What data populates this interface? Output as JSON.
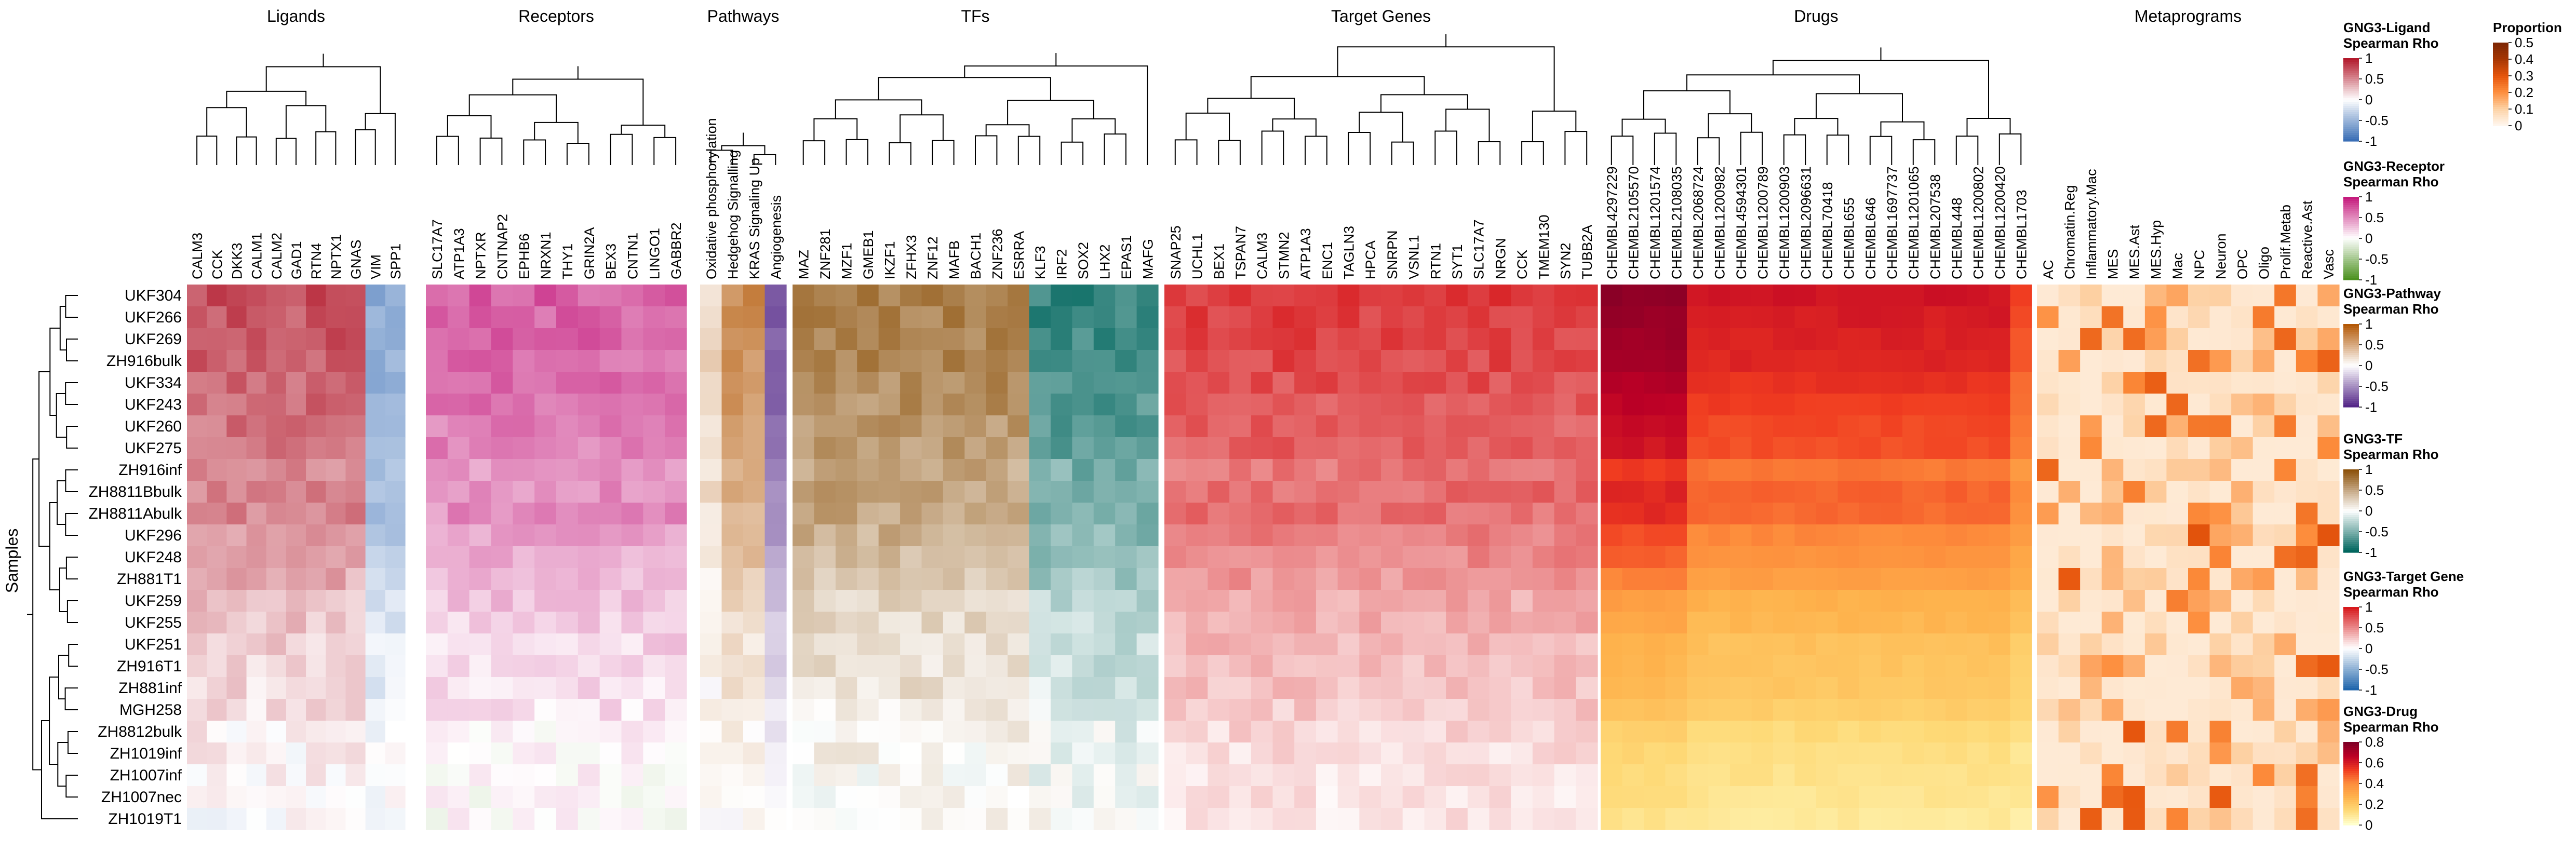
{
  "chart_data": {
    "type": "heatmap",
    "ylabel": "Samples",
    "samples": [
      "UKF304",
      "UKF266",
      "UKF269",
      "ZH916bulk",
      "UKF334",
      "UKF243",
      "UKF260",
      "UKF275",
      "ZH916inf",
      "ZH8811Bbulk",
      "ZH8811Abulk",
      "UKF296",
      "UKF248",
      "ZH881T1",
      "UKF259",
      "UKF255",
      "UKF251",
      "ZH916T1",
      "ZH881inf",
      "MGH258",
      "ZH8812bulk",
      "ZH1019inf",
      "ZH1007inf",
      "ZH1007nec",
      "ZH1019T1"
    ],
    "blocks": [
      {
        "title": "Ligands",
        "palette": "ligand",
        "columns": [
          "CALM3",
          "CCK",
          "DKK3",
          "CALM1",
          "CALM2",
          "GAD1",
          "RTN4",
          "NPTX1",
          "GNAS",
          "VIM",
          "SPP1"
        ]
      },
      {
        "title": "Receptors",
        "palette": "receptor",
        "columns": [
          "SLC17A7",
          "ATP1A3",
          "NPTXR",
          "CNTNAP2",
          "EPHB6",
          "NRXN1",
          "THY1",
          "GRIN2A",
          "BEX3",
          "CNTN1",
          "LINGO1",
          "GABBR2"
        ]
      },
      {
        "title": "Pathways",
        "palette": "pathway",
        "columns": [
          "Oxidative phosphorylation",
          "Hedgehog Signalling",
          "KRAS Signaling Up",
          "Angiogenesis"
        ]
      },
      {
        "title": "TFs",
        "palette": "tf",
        "columns": [
          "MAZ",
          "ZNF281",
          "MZF1",
          "GMEB1",
          "IKZF1",
          "ZFHX3",
          "ZNF12",
          "MAFB",
          "BACH1",
          "ZNF236",
          "ESRRA",
          "KLF3",
          "IRF2",
          "SOX2",
          "LHX2",
          "EPAS1",
          "MAFG"
        ]
      },
      {
        "title": "Target Genes",
        "palette": "target",
        "columns": [
          "SNAP25",
          "UCHL1",
          "BEX1",
          "TSPAN7",
          "CALM3",
          "STMN2",
          "ATP1A3",
          "ENC1",
          "TAGLN3",
          "HPCA",
          "SNRPN",
          "VSNL1",
          "RTN1",
          "SYT1",
          "SLC17A7",
          "NRGN",
          "CCK",
          "TMEM130",
          "SYN2",
          "TUBB2A"
        ]
      },
      {
        "title": "Drugs",
        "palette": "drug",
        "columns": [
          "CHEMBL4297229",
          "CHEMBL2105570",
          "CHEMBL1201574",
          "CHEMBL2108035",
          "CHEMBL2068724",
          "CHEMBL1200982",
          "CHEMBL4594301",
          "CHEMBL1200789",
          "CHEMBL1200903",
          "CHEMBL2096631",
          "CHEMBL70418",
          "CHEMBL655",
          "CHEMBL646",
          "CHEMBL1697737",
          "CHEMBL1201065",
          "CHEMBL207538",
          "CHEMBL448",
          "CHEMBL1200802",
          "CHEMBL1200420",
          "CHEMBL1703"
        ]
      },
      {
        "title": "Metaprograms",
        "palette": "meta",
        "columns": [
          "AC",
          "Chromatin.Reg",
          "Inflammatory.Mac",
          "MES",
          "MES.Ast",
          "MES.Hyp",
          "Mac",
          "NPC",
          "Neuron",
          "OPC",
          "Oligo",
          "Prolif.Metab",
          "Reactive.Ast",
          "Vasc"
        ]
      }
    ],
    "legends": [
      {
        "title": [
          "GNG3-Ligand",
          "Spearman Rho"
        ],
        "palette": "ligand",
        "ticks": [
          "1",
          "0.5",
          "0",
          "-0.5",
          "-1"
        ]
      },
      {
        "title": [
          "GNG3-Receptor",
          "Spearman Rho"
        ],
        "palette": "receptor",
        "ticks": [
          "1",
          "0.5",
          "0",
          "-0.5",
          "-1"
        ]
      },
      {
        "title": [
          "GNG3-Pathway",
          "Spearman Rho"
        ],
        "palette": "pathway",
        "ticks": [
          "1",
          "0.5",
          "0",
          "-0.5",
          "-1"
        ]
      },
      {
        "title": [
          "GNG3-TF",
          "Spearman Rho"
        ],
        "palette": "tf",
        "ticks": [
          "1",
          "0.5",
          "0",
          "-0.5",
          "-1"
        ]
      },
      {
        "title": [
          "GNG3-Target Gene",
          "Spearman Rho"
        ],
        "palette": "target",
        "ticks": [
          "1",
          "0.5",
          "0",
          "-0.5",
          "-1"
        ]
      },
      {
        "title": [
          "GNG3-Drug",
          "Spearman Rho"
        ],
        "palette": "drug",
        "ticks": [
          "0.8",
          "0.6",
          "0.4",
          "0.2",
          "0"
        ]
      },
      {
        "title": [
          "Proportion"
        ],
        "palette": "prop",
        "ticks": [
          "0.5",
          "0.4",
          "0.3",
          "0.2",
          "0.1",
          "0"
        ]
      }
    ],
    "palettes": {
      "ligand": {
        "low": "#3b6fb6",
        "mid": "#ffffff",
        "high": "#b2182b"
      },
      "receptor": {
        "low": "#4d9221",
        "mid": "#ffffff",
        "high": "#c51b7d"
      },
      "pathway": {
        "low": "#542788",
        "mid": "#ffffff",
        "high": "#b35806"
      },
      "tf": {
        "low": "#01665e",
        "mid": "#ffffff",
        "high": "#8c510a"
      },
      "target": {
        "low": "#2166ac",
        "mid": "#ffffff",
        "high": "#d7191c"
      },
      "drug": {
        "stops": [
          "#ffffcc",
          "#fed976",
          "#feb24c",
          "#fd8d3c",
          "#f03b20",
          "#bd0026",
          "#800026"
        ]
      },
      "prop": {
        "stops": [
          "#fff5eb",
          "#fdd0a2",
          "#fd8d3c",
          "#e6550d",
          "#a63603",
          "#7f2704"
        ]
      },
      "meta": {
        "stops": [
          "#fff5eb",
          "#fdd0a2",
          "#fd8d3c",
          "#e6550d",
          "#a63603",
          "#7f2704"
        ]
      }
    }
  }
}
